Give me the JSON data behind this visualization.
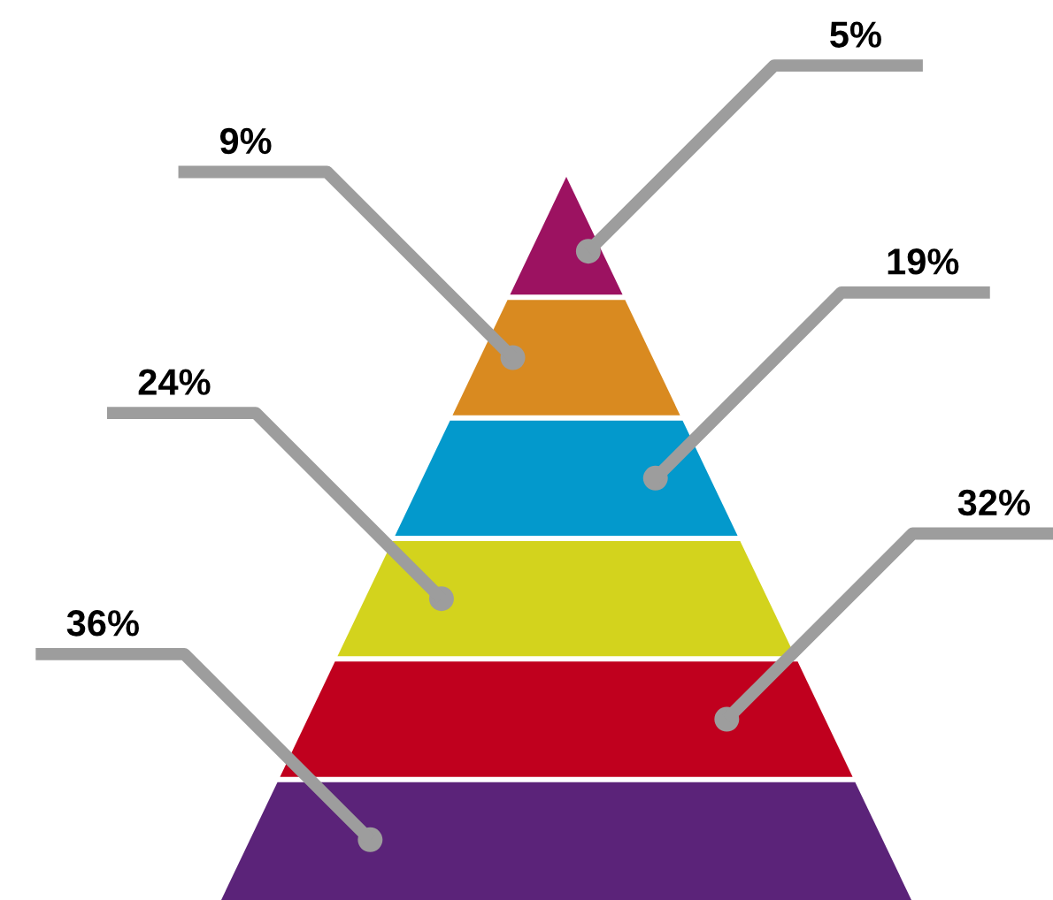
{
  "chart_data": {
    "type": "other",
    "categories": [
      null,
      null,
      null,
      null,
      null,
      null
    ],
    "values": [
      5,
      9,
      19,
      24,
      32,
      36
    ],
    "value_labels": [
      "5%",
      "9%",
      "19%",
      "24%",
      "32%",
      "36%"
    ],
    "colors": [
      "#9c1261",
      "#d98a20",
      "#0399cc",
      "#d3d31d",
      "#c0001e",
      "#5b2379"
    ]
  }
}
